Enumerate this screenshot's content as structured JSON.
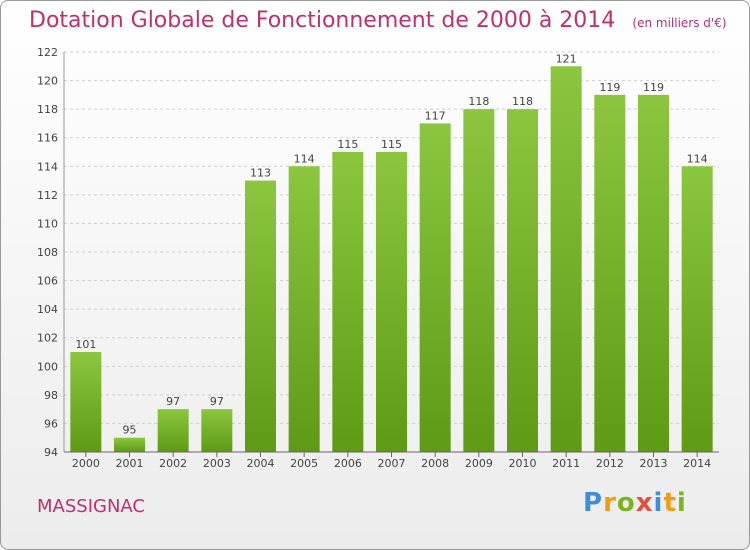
{
  "header": {
    "title": "Dotation Globale de Fonctionnement de 2000 à 2014",
    "unit": "(en milliers d'€)"
  },
  "commune": "MASSIGNAC",
  "logo": {
    "text": "Proxiti",
    "letters": [
      "P",
      "r",
      "o",
      "x",
      "i",
      "t",
      "i"
    ],
    "colors": [
      "#3e8fd6",
      "#f39c12",
      "#7ab51d",
      "#e74c3c",
      "#3e8fd6",
      "#f39c12",
      "#7ab51d"
    ]
  },
  "chart_data": {
    "type": "bar",
    "title": "Dotation Globale de Fonctionnement de 2000 à 2014",
    "categories": [
      "2000",
      "2001",
      "2002",
      "2003",
      "2004",
      "2005",
      "2006",
      "2007",
      "2008",
      "2009",
      "2010",
      "2011",
      "2012",
      "2013",
      "2014"
    ],
    "values": [
      101,
      95,
      97,
      97,
      113,
      114,
      115,
      115,
      117,
      118,
      118,
      121,
      119,
      119,
      114
    ],
    "ylim": [
      94,
      122
    ],
    "yticks": [
      94,
      96,
      98,
      100,
      102,
      104,
      106,
      108,
      110,
      112,
      114,
      116,
      118,
      120,
      122
    ],
    "grid": true,
    "bar_color": "#8cc63f",
    "bar_color_dark": "#5e9a14"
  }
}
